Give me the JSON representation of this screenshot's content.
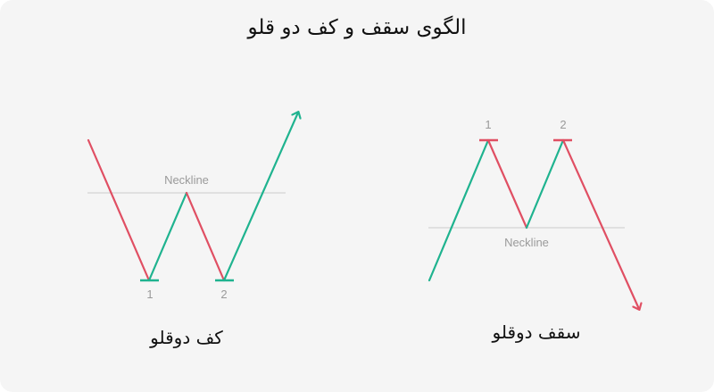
{
  "title": "الگوی سقف و کف دو قلو",
  "colors": {
    "bullish": "#1fb38f",
    "bearish": "#e04f63",
    "neckline": "#d4d4d4",
    "label": "#9a9a9a"
  },
  "double_bottom": {
    "caption": "کف دوقلو",
    "neckline_label": "Neckline",
    "bottom_1_label": "1",
    "bottom_2_label": "2"
  },
  "double_top": {
    "caption": "سقف دوقلو",
    "neckline_label": "Neckline",
    "top_1_label": "1",
    "top_2_label": "2"
  }
}
